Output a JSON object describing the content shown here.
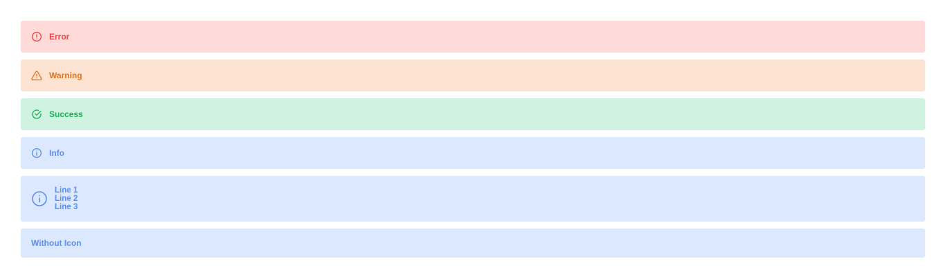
{
  "alerts": {
    "error": {
      "label": "Error",
      "icon": "alert-circle-icon",
      "color": "#ef4444",
      "background": "#fedad8"
    },
    "warning": {
      "label": "Warning",
      "icon": "alert-triangle-icon",
      "color": "#e97316",
      "background": "#fde3d2"
    },
    "success": {
      "label": "Success",
      "icon": "check-circle-icon",
      "color": "#18b258",
      "background": "#cff3e0"
    },
    "info": {
      "label": "Info",
      "icon": "info-circle-icon",
      "color": "#5a8ff0",
      "background": "#dce8fd"
    },
    "multiline": {
      "lines": [
        "Line 1",
        "Line 2",
        "Line 3"
      ],
      "icon": "info-circle-icon"
    },
    "no_icon": {
      "label": "Without Icon"
    }
  }
}
